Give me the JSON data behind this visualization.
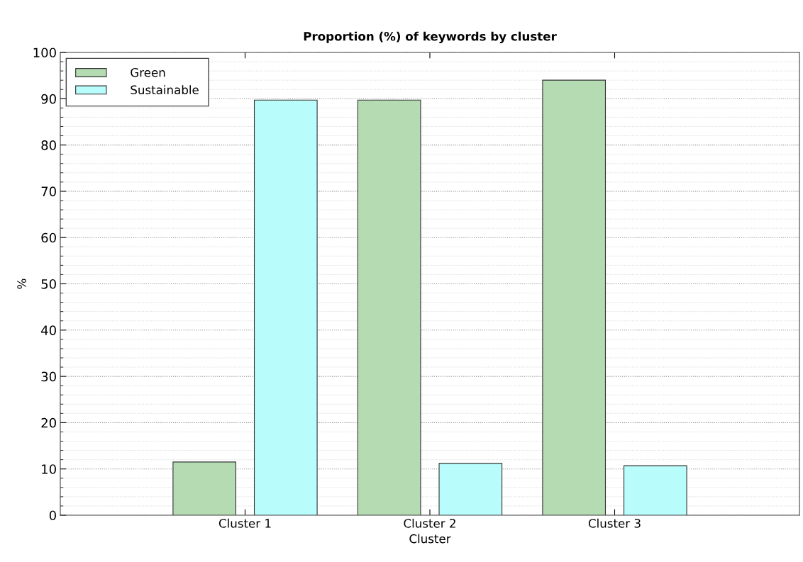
{
  "chart_data": {
    "type": "bar",
    "title": "Proportion (%) of keywords by cluster",
    "xlabel": "Cluster",
    "ylabel": "%",
    "categories": [
      "Cluster 1",
      "Cluster 2",
      "Cluster 3"
    ],
    "series": [
      {
        "name": "Green",
        "color": "#b5dbb3",
        "values": [
          11.5,
          89.7,
          94.0
        ]
      },
      {
        "name": "Sustainable",
        "color": "#b9fcfc",
        "values": [
          89.7,
          11.2,
          10.7
        ]
      }
    ],
    "ylim": [
      0,
      100
    ],
    "yticks": [
      0,
      10,
      20,
      30,
      40,
      50,
      60,
      70,
      80,
      90,
      100
    ],
    "grid": "y",
    "legend": "top left"
  }
}
